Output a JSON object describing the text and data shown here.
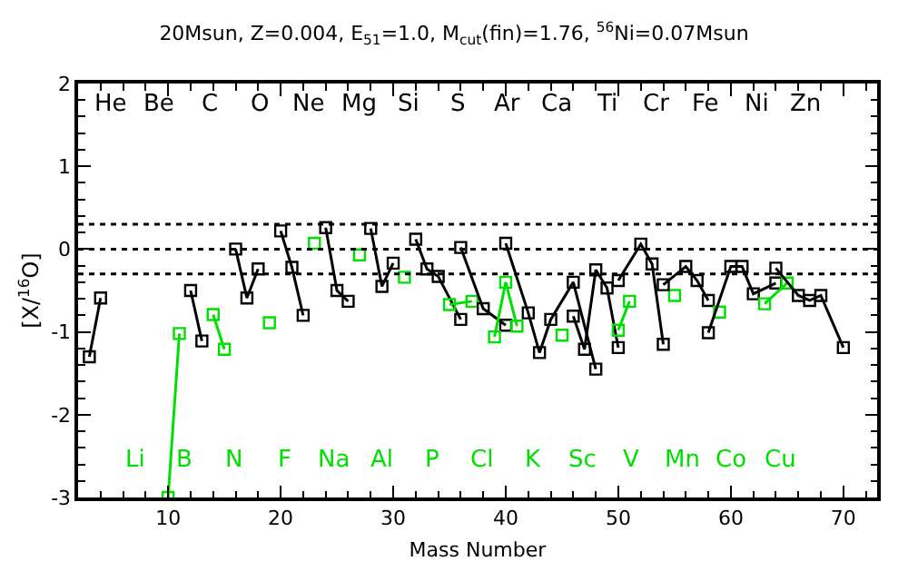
{
  "chart_data": {
    "type": "line",
    "title": "20Msun, Z=0.004, E$_{51}$=1.0, M$_{cut}$(fin)=1.76, $^{56}$Ni=0.07Msun",
    "xlabel": "Mass Number",
    "ylabel": "[X/$^{16}$O]",
    "xlim": [
      2,
      73
    ],
    "xticks": [
      10,
      20,
      30,
      40,
      50,
      60,
      70
    ],
    "ylim": [
      -3,
      2
    ],
    "yticks": [
      -3,
      -2,
      -1,
      0,
      1,
      2
    ],
    "marker": "square",
    "line_style": "solid",
    "legend": false,
    "annotations": [
      "He",
      "Li",
      "Be",
      "B",
      "C",
      "N",
      "O",
      "F",
      "Ne",
      "Na",
      "Mg",
      "Al",
      "Si",
      "P",
      "S",
      "Cl",
      "Ar",
      "K",
      "Ca",
      "Sc",
      "Ti",
      "V",
      "Cr",
      "Mn",
      "Fe",
      "Co",
      "Ni",
      "Cu",
      "Zn"
    ],
    "ref_lines": [
      {
        "axis": "y",
        "value": 0.3,
        "color": "#000000",
        "line_style": "dotted"
      },
      {
        "axis": "y",
        "value": 0,
        "color": "#000000",
        "line_style": "dotted"
      },
      {
        "axis": "y",
        "value": -0.3,
        "color": "#000000",
        "line_style": "dotted"
      }
    ],
    "series": [
      {
        "color": "#000000",
        "x": [
          3,
          4
        ],
        "values": [
          -1.3,
          -0.59
        ]
      },
      {
        "color": "#00e000",
        "x": [
          10,
          11
        ],
        "values": [
          -3,
          -1.02
        ]
      },
      {
        "color": "#000000",
        "x": [
          12,
          13
        ],
        "values": [
          -0.5,
          -1.11
        ]
      },
      {
        "color": "#00e000",
        "x": [
          14,
          15
        ],
        "values": [
          -0.79,
          -1.21
        ]
      },
      {
        "color": "#000000",
        "x": [
          16,
          17,
          18
        ],
        "values": [
          0.0,
          -0.59,
          -0.24
        ]
      },
      {
        "color": "#00e000",
        "x": [
          19
        ],
        "values": [
          -0.89
        ]
      },
      {
        "color": "#000000",
        "x": [
          20,
          21,
          22
        ],
        "values": [
          0.22,
          -0.22,
          -0.8
        ]
      },
      {
        "color": "#00e000",
        "x": [
          23
        ],
        "values": [
          0.07
        ]
      },
      {
        "color": "#000000",
        "x": [
          24,
          25,
          26
        ],
        "values": [
          0.26,
          -0.5,
          -0.63
        ]
      },
      {
        "color": "#00e000",
        "x": [
          27
        ],
        "values": [
          -0.07
        ]
      },
      {
        "color": "#000000",
        "x": [
          28,
          29,
          30
        ],
        "values": [
          0.25,
          -0.45,
          -0.17
        ]
      },
      {
        "color": "#00e000",
        "x": [
          31
        ],
        "values": [
          -0.34
        ]
      },
      {
        "color": "#000000",
        "x": [
          32,
          33,
          34,
          36
        ],
        "values": [
          0.12,
          -0.24,
          -0.33,
          -0.85
        ]
      },
      {
        "color": "#00e000",
        "x": [
          35,
          37
        ],
        "values": [
          -0.67,
          -0.63
        ]
      },
      {
        "color": "#000000",
        "x": [
          36,
          38,
          40
        ],
        "values": [
          0.02,
          -0.72,
          -0.92
        ]
      },
      {
        "color": "#00e000",
        "x": [
          39,
          40,
          41
        ],
        "values": [
          -1.06,
          -0.4,
          -0.93
        ]
      },
      {
        "color": "#000000",
        "x": [
          40,
          42,
          43,
          44,
          46,
          48
        ],
        "values": [
          0.07,
          -0.77,
          -1.25,
          -0.85,
          -0.4,
          -1.45
        ]
      },
      {
        "color": "#00e000",
        "x": [
          45
        ],
        "values": [
          -1.04
        ]
      },
      {
        "color": "#000000",
        "x": [
          46,
          47,
          48,
          49,
          50
        ],
        "values": [
          -0.81,
          -1.21,
          -0.25,
          -0.47,
          -1.19
        ]
      },
      {
        "color": "#00e000",
        "x": [
          50,
          51
        ],
        "values": [
          -0.98,
          -0.63
        ]
      },
      {
        "color": "#000000",
        "x": [
          50,
          52,
          53,
          54
        ],
        "values": [
          -0.38,
          0.06,
          -0.18,
          -1.15
        ]
      },
      {
        "color": "#00e000",
        "x": [
          55
        ],
        "values": [
          -0.56
        ]
      },
      {
        "color": "#000000",
        "x": [
          54,
          56,
          57,
          58
        ],
        "values": [
          -0.43,
          -0.21,
          -0.38,
          -0.62
        ]
      },
      {
        "color": "#00e000",
        "x": [
          59
        ],
        "values": [
          -0.76
        ]
      },
      {
        "color": "#000000",
        "x": [
          58,
          60,
          61,
          62,
          64
        ],
        "values": [
          -1.01,
          -0.21,
          -0.21,
          -0.54,
          -0.41
        ]
      },
      {
        "color": "#00e000",
        "x": [
          63,
          65
        ],
        "values": [
          -0.66,
          -0.41
        ]
      },
      {
        "color": "#000000",
        "x": [
          64,
          66,
          67,
          68,
          70
        ],
        "values": [
          -0.23,
          -0.56,
          -0.62,
          -0.56,
          -1.19
        ]
      }
    ]
  }
}
